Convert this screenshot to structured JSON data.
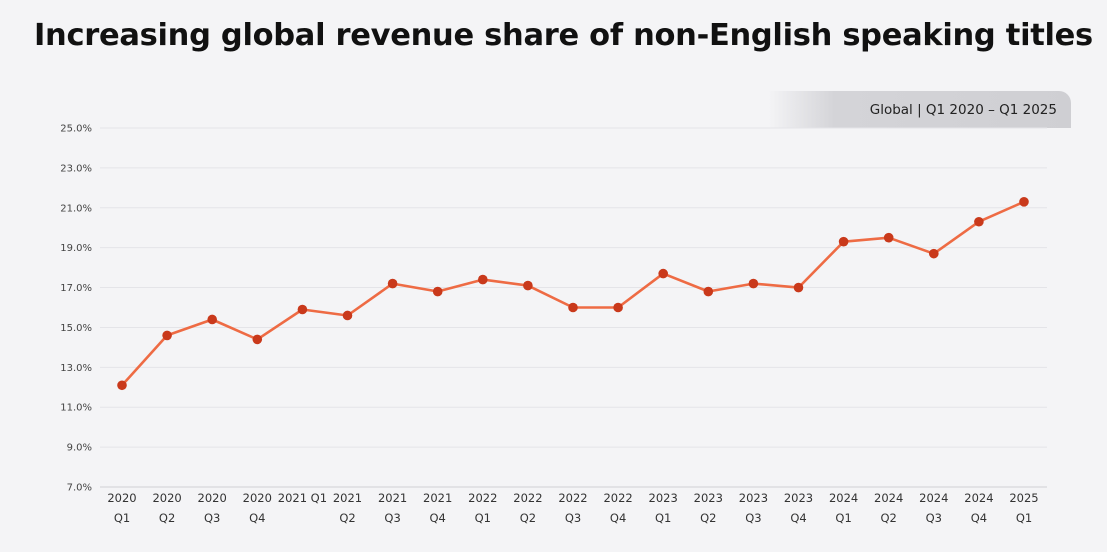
{
  "title": "Increasing global revenue share of non-English speaking titles",
  "badge": "Global  |  Q1 2020 – Q1 2025",
  "colors": {
    "line": "#ee6b44",
    "marker": "#c9391b",
    "grid": "#e4e4e8",
    "background": "#f4f4f6"
  },
  "chart_data": {
    "type": "line",
    "title": "Increasing global revenue share of non-English speaking titles",
    "xlabel": "",
    "ylabel": "",
    "ylim": [
      7.0,
      25.0
    ],
    "yticks": [
      "7.0%",
      "9.0%",
      "11.0%",
      "13.0%",
      "15.0%",
      "17.0%",
      "19.0%",
      "21.0%",
      "23.0%",
      "25.0%"
    ],
    "grid": true,
    "categories": [
      [
        "2020",
        "Q1"
      ],
      [
        "2020",
        "Q2"
      ],
      [
        "2020",
        "Q3"
      ],
      [
        "2020",
        "Q4"
      ],
      [
        "2021 Q1",
        ""
      ],
      [
        "2021",
        "Q2"
      ],
      [
        "2021",
        "Q3"
      ],
      [
        "2021",
        "Q4"
      ],
      [
        "2022",
        "Q1"
      ],
      [
        "2022",
        "Q2"
      ],
      [
        "2022",
        "Q3"
      ],
      [
        "2022",
        "Q4"
      ],
      [
        "2023",
        "Q1"
      ],
      [
        "2023",
        "Q2"
      ],
      [
        "2023",
        "Q3"
      ],
      [
        "2023",
        "Q4"
      ],
      [
        "2024",
        "Q1"
      ],
      [
        "2024",
        "Q2"
      ],
      [
        "2024",
        "Q3"
      ],
      [
        "2024",
        "Q4"
      ],
      [
        "2025",
        "Q1"
      ]
    ],
    "values": [
      12.1,
      14.6,
      15.4,
      14.4,
      15.9,
      15.6,
      17.2,
      16.8,
      17.4,
      17.1,
      16.0,
      16.0,
      17.7,
      16.8,
      17.2,
      17.0,
      19.3,
      19.5,
      18.7,
      20.3,
      21.3
    ]
  }
}
